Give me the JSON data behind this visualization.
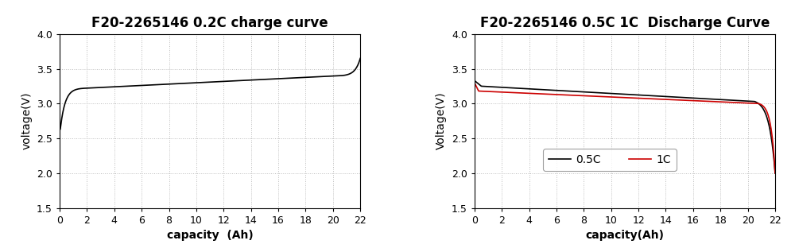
{
  "title1": "F20-2265146 0.2C charge curve",
  "title2": "F20-2265146 0.5C 1C  Discharge Curve",
  "xlabel1": "capacity  (Ah)",
  "xlabel2": "capacity(Ah)",
  "ylabel1": "voltage(V)",
  "ylabel2": "Voltage(V)",
  "ylim": [
    1.5,
    4.0
  ],
  "xlim": [
    0,
    22
  ],
  "yticks": [
    1.5,
    2.0,
    2.5,
    3.0,
    3.5,
    4.0
  ],
  "xticks": [
    0,
    2,
    4,
    6,
    8,
    10,
    12,
    14,
    16,
    18,
    20,
    22
  ],
  "line_color_black": "#000000",
  "line_color_red": "#cc0000",
  "grid_color": "#aaaaaa",
  "bg_color": "#ffffff",
  "title_fontsize": 12,
  "label_fontsize": 10,
  "tick_fontsize": 9,
  "legend_labels": [
    "0.5C",
    "1C"
  ]
}
